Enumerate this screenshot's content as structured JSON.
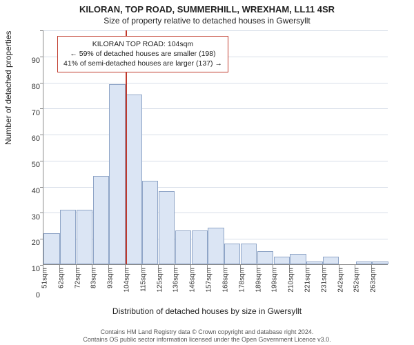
{
  "title": {
    "line1": "KILORAN, TOP ROAD, SUMMERHILL, WREXHAM, LL11 4SR",
    "line2": "Size of property relative to detached houses in Gwersyllt"
  },
  "chart": {
    "type": "histogram",
    "xlabel": "Distribution of detached houses by size in Gwersyllt",
    "ylabel": "Number of detached properties",
    "ylim": [
      0,
      90
    ],
    "ytick_step": 10,
    "yticks": [
      0,
      10,
      20,
      30,
      40,
      50,
      60,
      70,
      80,
      90
    ],
    "categories": [
      "51sqm",
      "62sqm",
      "72sqm",
      "83sqm",
      "93sqm",
      "104sqm",
      "115sqm",
      "125sqm",
      "136sqm",
      "146sqm",
      "157sqm",
      "168sqm",
      "178sqm",
      "189sqm",
      "199sqm",
      "210sqm",
      "221sqm",
      "231sqm",
      "242sqm",
      "252sqm",
      "263sqm"
    ],
    "values": [
      12,
      21,
      21,
      34,
      69,
      65,
      32,
      28,
      13,
      13,
      14,
      8,
      8,
      5,
      3,
      4,
      1,
      3,
      0,
      1,
      1
    ],
    "bar_fill": "#dbe5f4",
    "bar_border": "#8fa5c7",
    "background_color": "#ffffff",
    "grid_color": "#d7dee8",
    "axis_color": "#888888",
    "reference_line": {
      "index": 5,
      "color": "#c0392b"
    },
    "annotation": {
      "line1": "KILORAN TOP ROAD: 104sqm",
      "line2": "← 59% of detached houses are smaller (198)",
      "line3": "41% of semi-detached houses are larger (137) →",
      "border_color": "#c0392b"
    },
    "tick_fontsize": 11,
    "label_fontsize": 12,
    "title_fontsize": 13
  },
  "footer": {
    "line1": "Contains HM Land Registry data © Crown copyright and database right 2024.",
    "line2": "Contains OS public sector information licensed under the Open Government Licence v3.0."
  }
}
